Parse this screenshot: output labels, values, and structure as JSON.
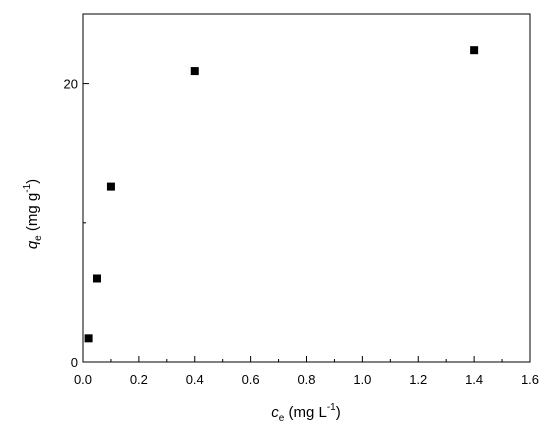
{
  "chart_data": {
    "type": "scatter",
    "xlabel": {
      "symbol": "c",
      "subscript": "e",
      "unit": " (mg L",
      "unit_sup": "-1",
      "unit_close": ")"
    },
    "ylabel": {
      "symbol": "q",
      "subscript": "e",
      "unit": " (mg g",
      "unit_sup": "-1",
      "unit_close": ")"
    },
    "xlim": [
      0,
      1.6
    ],
    "ylim": [
      0,
      25
    ],
    "x_ticks": [
      0.0,
      0.2,
      0.4,
      0.6,
      0.8,
      1.0,
      1.2,
      1.4,
      1.6
    ],
    "x_tick_labels": [
      "0.0",
      "0.2",
      "0.4",
      "0.6",
      "0.8",
      "1.0",
      "1.2",
      "1.4",
      "1.6"
    ],
    "y_ticks": [
      0,
      20
    ],
    "y_tick_labels": [
      "0",
      "20"
    ],
    "grid": false,
    "marker": "square",
    "marker_color": "#000000",
    "points": [
      {
        "x": 0.02,
        "y": 1.7
      },
      {
        "x": 0.05,
        "y": 6.0
      },
      {
        "x": 0.1,
        "y": 12.6
      },
      {
        "x": 0.4,
        "y": 20.9
      },
      {
        "x": 1.4,
        "y": 22.4
      }
    ]
  }
}
